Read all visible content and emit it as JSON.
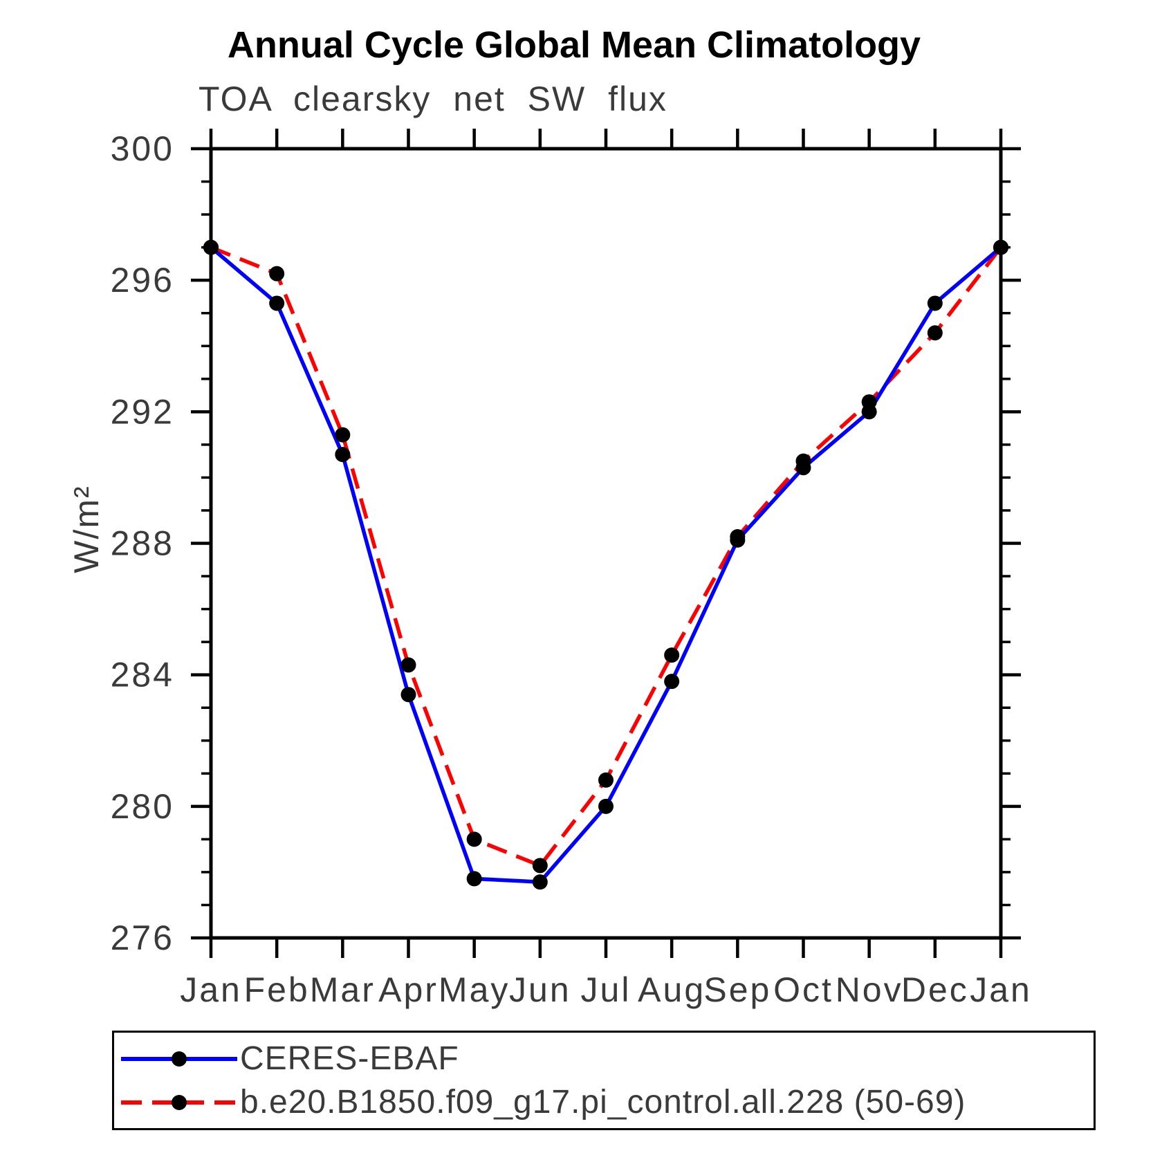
{
  "title": "Annual Cycle Global Mean Climatology",
  "subtitle": "TOA clearsky net SW flux",
  "ylabel": "W/m²",
  "legend": {
    "items": [
      {
        "label": "CERES-EBAF",
        "color": "#0000ff",
        "style": "solid"
      },
      {
        "label": "b.e20.B1850.f09_g17.pi_control.all.228 (50-69)",
        "color": "#ff0000",
        "style": "dashed"
      }
    ]
  },
  "chart_data": {
    "type": "line",
    "categories": [
      "Jan",
      "Feb",
      "Mar",
      "Apr",
      "May",
      "Jun",
      "Jul",
      "Aug",
      "Sep",
      "Oct",
      "Nov",
      "Dec",
      "Jan"
    ],
    "series": [
      {
        "name": "CERES-EBAF",
        "color": "#0000ff",
        "dash": "solid",
        "values": [
          297.0,
          295.3,
          290.7,
          283.4,
          277.8,
          277.7,
          280.0,
          283.8,
          288.1,
          290.3,
          292.0,
          295.3,
          297.0
        ]
      },
      {
        "name": "b.e20.B1850.f09_g17.pi_control.all.228 (50-69)",
        "color": "#ff0000",
        "dash": "dashed",
        "values": [
          297.0,
          296.2,
          291.3,
          284.3,
          279.0,
          278.2,
          280.8,
          284.6,
          288.2,
          290.5,
          292.3,
          294.4,
          297.0
        ]
      }
    ],
    "marker_color": "#000000",
    "axis_color": "#000000",
    "ylim": [
      276,
      300
    ],
    "ytick_major": 4,
    "ytick_minor": 1,
    "ytick_labels": [
      "276",
      "280",
      "284",
      "288",
      "292",
      "296",
      "300"
    ],
    "grid": false,
    "legend_position": "below"
  }
}
